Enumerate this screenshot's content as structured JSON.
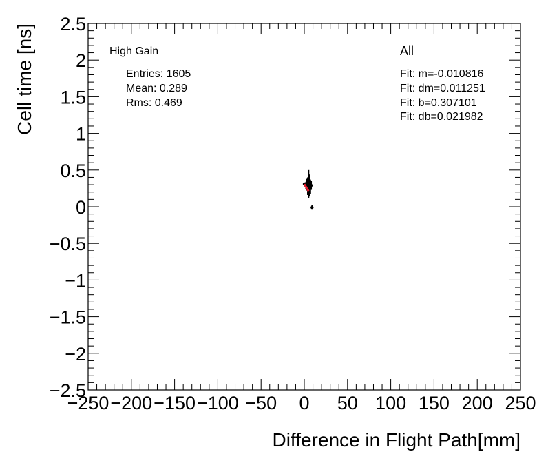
{
  "chart_data": {
    "type": "scatter",
    "xlabel": "Difference in Flight Path[mm]",
    "ylabel": "Cell time [ns]",
    "xlim": [
      -250,
      250
    ],
    "ylim": [
      -2.5,
      2.5
    ],
    "xticks": [
      -250,
      -200,
      -150,
      -100,
      -50,
      0,
      50,
      100,
      150,
      200,
      250
    ],
    "yticks": [
      -2.5,
      -2,
      -1.5,
      -1,
      -0.5,
      0,
      0.5,
      1,
      1.5,
      2,
      2.5
    ],
    "xtick_labels": [
      "−250",
      "−200",
      "−150",
      "−100",
      "−50",
      "0",
      "50",
      "100",
      "150",
      "200",
      "250"
    ],
    "ytick_labels": [
      "−2.5",
      "−2",
      "−1.5",
      "−1",
      "−0.5",
      "0",
      "0.5",
      "1",
      "1.5",
      "2",
      "2.5"
    ],
    "grid": false,
    "gain_label": "High Gain",
    "category_label": "All",
    "stats": {
      "entries": "Entries: 1605",
      "mean": "Mean: 0.289",
      "rms": "Rms: 0.469"
    },
    "fit": {
      "m": "Fit: m=-0.010816",
      "dm": "Fit: dm=0.011251",
      "b": "Fit: b=0.307101",
      "db": "Fit: db=0.021982"
    },
    "fit_line": {
      "m": -0.010816,
      "b": 0.307101,
      "x_range": [
        0,
        5
      ],
      "color": "#e8192c"
    },
    "points": [
      {
        "x": 0.0,
        "y": 0.31,
        "err": 0.02
      },
      {
        "x": 1.0,
        "y": 0.3,
        "err": 0.03
      },
      {
        "x": 2.0,
        "y": 0.29,
        "err": 0.05
      },
      {
        "x": 3.0,
        "y": 0.3,
        "err": 0.08
      },
      {
        "x": 4.0,
        "y": 0.28,
        "err": 0.12
      },
      {
        "x": 5.0,
        "y": 0.31,
        "err": 0.19
      },
      {
        "x": 6.0,
        "y": 0.29,
        "err": 0.15
      },
      {
        "x": 7.0,
        "y": 0.27,
        "err": 0.1
      },
      {
        "x": 8.0,
        "y": 0.29,
        "err": 0.06
      },
      {
        "x": 9.0,
        "y": -0.01,
        "err": 0.03
      }
    ]
  }
}
